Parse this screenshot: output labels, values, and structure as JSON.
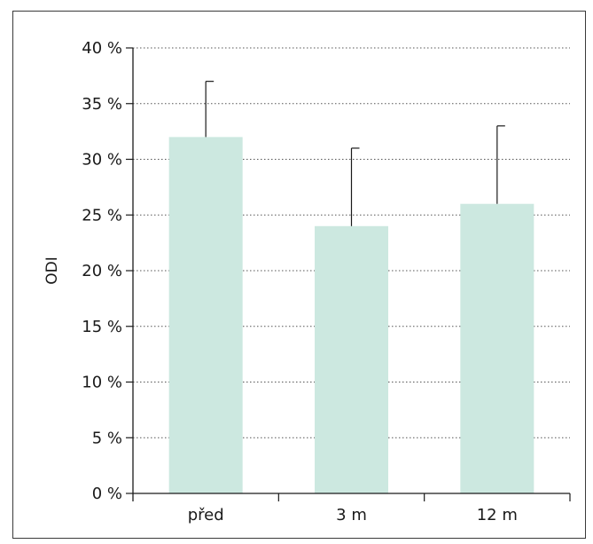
{
  "chart_data": {
    "type": "bar",
    "categories": [
      "před",
      "3 m",
      "12 m"
    ],
    "values": [
      32,
      24,
      26
    ],
    "error_upper": [
      37,
      31,
      33
    ],
    "ylabel": "ODI",
    "ylim": [
      0,
      40
    ],
    "yticks": [
      0,
      5,
      10,
      15,
      20,
      25,
      30,
      35,
      40
    ],
    "ytick_labels": [
      "0 %",
      "5 %",
      "10 %",
      "15 %",
      "20 %",
      "25 %",
      "30 %",
      "35 %",
      "40 %"
    ],
    "grid": "horizontal dotted",
    "bar_color": "#cce8e0",
    "line_color": "#1a1a1a"
  }
}
